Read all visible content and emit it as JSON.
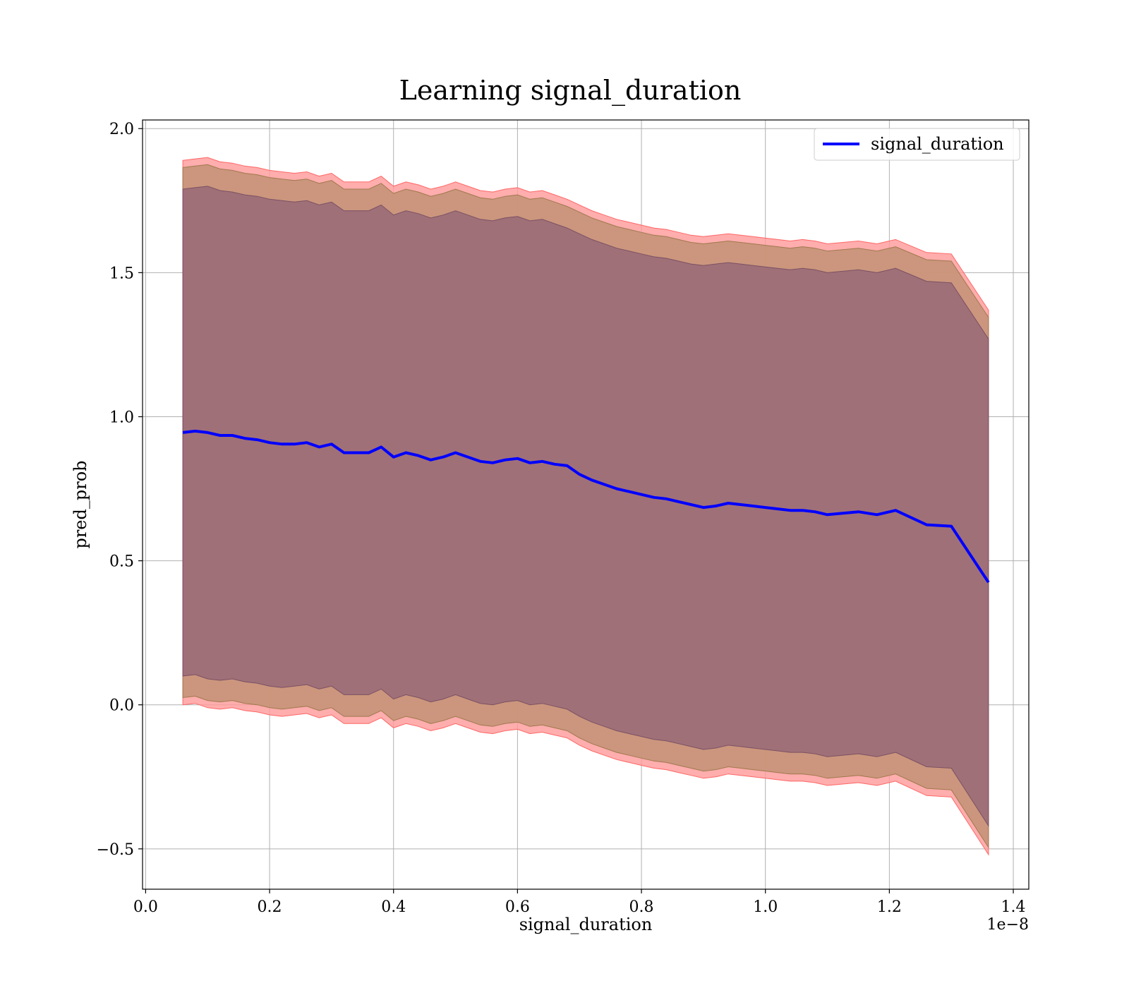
{
  "chart_data": {
    "type": "line",
    "title": "Learning signal_duration",
    "xlabel": "signal_duration",
    "ylabel": "pred_prob",
    "x_offset_label": "1e−8",
    "x_scale_factor": 1e-08,
    "xlim": [
      -0.005,
      1.425
    ],
    "ylim": [
      -0.64,
      2.03
    ],
    "xticks": [
      0.0,
      0.2,
      0.4,
      0.6,
      0.8,
      1.0,
      1.2,
      1.4
    ],
    "xtick_labels": [
      "0.0",
      "0.2",
      "0.4",
      "0.6",
      "0.8",
      "1.0",
      "1.2",
      "1.4"
    ],
    "yticks": [
      -0.5,
      0.0,
      0.5,
      1.0,
      1.5,
      2.0
    ],
    "ytick_labels": [
      "−0.5",
      "0.0",
      "0.5",
      "1.0",
      "1.5",
      "2.0"
    ],
    "grid": true,
    "legend_position": "top-right",
    "colors": {
      "line": "#0000ff",
      "band_outer": "#ff9999",
      "band_middle": "#c8957a",
      "band_inner": "#a07078"
    },
    "x": [
      0.06,
      0.08,
      0.1,
      0.12,
      0.14,
      0.16,
      0.18,
      0.2,
      0.22,
      0.24,
      0.26,
      0.28,
      0.3,
      0.32,
      0.34,
      0.36,
      0.38,
      0.4,
      0.42,
      0.44,
      0.46,
      0.48,
      0.5,
      0.52,
      0.54,
      0.56,
      0.58,
      0.6,
      0.62,
      0.64,
      0.66,
      0.68,
      0.7,
      0.72,
      0.74,
      0.76,
      0.78,
      0.8,
      0.82,
      0.84,
      0.86,
      0.88,
      0.9,
      0.92,
      0.94,
      0.96,
      0.98,
      1.0,
      1.02,
      1.04,
      1.06,
      1.08,
      1.1,
      1.15,
      1.18,
      1.21,
      1.26,
      1.3,
      1.36
    ],
    "series": [
      {
        "name": "signal_duration",
        "values": [
          0.945,
          0.95,
          0.945,
          0.935,
          0.935,
          0.925,
          0.92,
          0.91,
          0.905,
          0.905,
          0.91,
          0.895,
          0.905,
          0.875,
          0.875,
          0.875,
          0.895,
          0.86,
          0.875,
          0.865,
          0.85,
          0.86,
          0.875,
          0.86,
          0.845,
          0.84,
          0.85,
          0.855,
          0.84,
          0.845,
          0.835,
          0.83,
          0.8,
          0.78,
          0.765,
          0.75,
          0.74,
          0.73,
          0.72,
          0.715,
          0.705,
          0.695,
          0.685,
          0.69,
          0.7,
          0.695,
          0.69,
          0.685,
          0.68,
          0.675,
          0.675,
          0.67,
          0.66,
          0.67,
          0.66,
          0.675,
          0.625,
          0.62,
          0.425
        ]
      }
    ],
    "bands": [
      {
        "upper": [
          1.89,
          1.895,
          1.9,
          1.885,
          1.88,
          1.87,
          1.865,
          1.855,
          1.85,
          1.845,
          1.85,
          1.835,
          1.845,
          1.815,
          1.815,
          1.815,
          1.835,
          1.8,
          1.815,
          1.805,
          1.79,
          1.8,
          1.815,
          1.8,
          1.785,
          1.78,
          1.79,
          1.795,
          1.78,
          1.785,
          1.77,
          1.755,
          1.735,
          1.715,
          1.7,
          1.685,
          1.675,
          1.665,
          1.655,
          1.65,
          1.64,
          1.63,
          1.625,
          1.63,
          1.635,
          1.63,
          1.625,
          1.62,
          1.615,
          1.61,
          1.615,
          1.61,
          1.6,
          1.61,
          1.6,
          1.615,
          1.57,
          1.565,
          1.37
        ],
        "lower": [
          0.0,
          0.005,
          -0.01,
          -0.015,
          -0.01,
          -0.02,
          -0.025,
          -0.035,
          -0.04,
          -0.035,
          -0.03,
          -0.045,
          -0.035,
          -0.065,
          -0.065,
          -0.065,
          -0.045,
          -0.08,
          -0.065,
          -0.075,
          -0.09,
          -0.08,
          -0.065,
          -0.08,
          -0.095,
          -0.1,
          -0.09,
          -0.085,
          -0.1,
          -0.095,
          -0.105,
          -0.115,
          -0.14,
          -0.16,
          -0.175,
          -0.19,
          -0.2,
          -0.21,
          -0.22,
          -0.225,
          -0.235,
          -0.245,
          -0.255,
          -0.25,
          -0.24,
          -0.245,
          -0.25,
          -0.255,
          -0.26,
          -0.265,
          -0.265,
          -0.27,
          -0.28,
          -0.27,
          -0.28,
          -0.265,
          -0.315,
          -0.32,
          -0.52
        ]
      },
      {
        "upper": [
          1.865,
          1.87,
          1.875,
          1.86,
          1.855,
          1.845,
          1.84,
          1.83,
          1.825,
          1.82,
          1.825,
          1.81,
          1.82,
          1.79,
          1.79,
          1.79,
          1.81,
          1.775,
          1.79,
          1.78,
          1.765,
          1.775,
          1.79,
          1.775,
          1.76,
          1.755,
          1.765,
          1.77,
          1.755,
          1.76,
          1.745,
          1.73,
          1.71,
          1.69,
          1.675,
          1.66,
          1.65,
          1.64,
          1.63,
          1.625,
          1.615,
          1.605,
          1.6,
          1.605,
          1.61,
          1.605,
          1.6,
          1.595,
          1.59,
          1.585,
          1.59,
          1.585,
          1.575,
          1.585,
          1.575,
          1.59,
          1.545,
          1.54,
          1.345
        ],
        "lower": [
          0.025,
          0.03,
          0.015,
          0.01,
          0.015,
          0.005,
          0.0,
          -0.01,
          -0.015,
          -0.01,
          -0.005,
          -0.02,
          -0.01,
          -0.04,
          -0.04,
          -0.04,
          -0.02,
          -0.055,
          -0.04,
          -0.05,
          -0.065,
          -0.055,
          -0.04,
          -0.055,
          -0.07,
          -0.075,
          -0.065,
          -0.06,
          -0.075,
          -0.07,
          -0.08,
          -0.09,
          -0.115,
          -0.135,
          -0.15,
          -0.165,
          -0.175,
          -0.185,
          -0.195,
          -0.2,
          -0.21,
          -0.22,
          -0.23,
          -0.225,
          -0.215,
          -0.22,
          -0.225,
          -0.23,
          -0.235,
          -0.24,
          -0.24,
          -0.245,
          -0.255,
          -0.245,
          -0.255,
          -0.24,
          -0.29,
          -0.295,
          -0.495
        ]
      },
      {
        "upper": [
          1.79,
          1.795,
          1.8,
          1.785,
          1.78,
          1.77,
          1.765,
          1.755,
          1.75,
          1.745,
          1.75,
          1.735,
          1.745,
          1.715,
          1.715,
          1.715,
          1.735,
          1.7,
          1.715,
          1.705,
          1.69,
          1.7,
          1.715,
          1.7,
          1.685,
          1.68,
          1.69,
          1.695,
          1.68,
          1.685,
          1.67,
          1.655,
          1.635,
          1.615,
          1.6,
          1.585,
          1.575,
          1.565,
          1.555,
          1.55,
          1.54,
          1.53,
          1.525,
          1.53,
          1.535,
          1.53,
          1.525,
          1.52,
          1.515,
          1.51,
          1.515,
          1.51,
          1.5,
          1.51,
          1.5,
          1.515,
          1.47,
          1.465,
          1.27
        ],
        "lower": [
          0.1,
          0.105,
          0.09,
          0.085,
          0.09,
          0.08,
          0.075,
          0.065,
          0.06,
          0.065,
          0.07,
          0.055,
          0.065,
          0.035,
          0.035,
          0.035,
          0.055,
          0.02,
          0.035,
          0.025,
          0.01,
          0.02,
          0.035,
          0.02,
          0.005,
          0.0,
          0.01,
          0.015,
          0.0,
          0.005,
          -0.005,
          -0.015,
          -0.04,
          -0.06,
          -0.075,
          -0.09,
          -0.1,
          -0.11,
          -0.12,
          -0.125,
          -0.135,
          -0.145,
          -0.155,
          -0.15,
          -0.14,
          -0.145,
          -0.15,
          -0.155,
          -0.16,
          -0.165,
          -0.165,
          -0.17,
          -0.18,
          -0.17,
          -0.18,
          -0.165,
          -0.215,
          -0.22,
          -0.42
        ]
      }
    ]
  }
}
